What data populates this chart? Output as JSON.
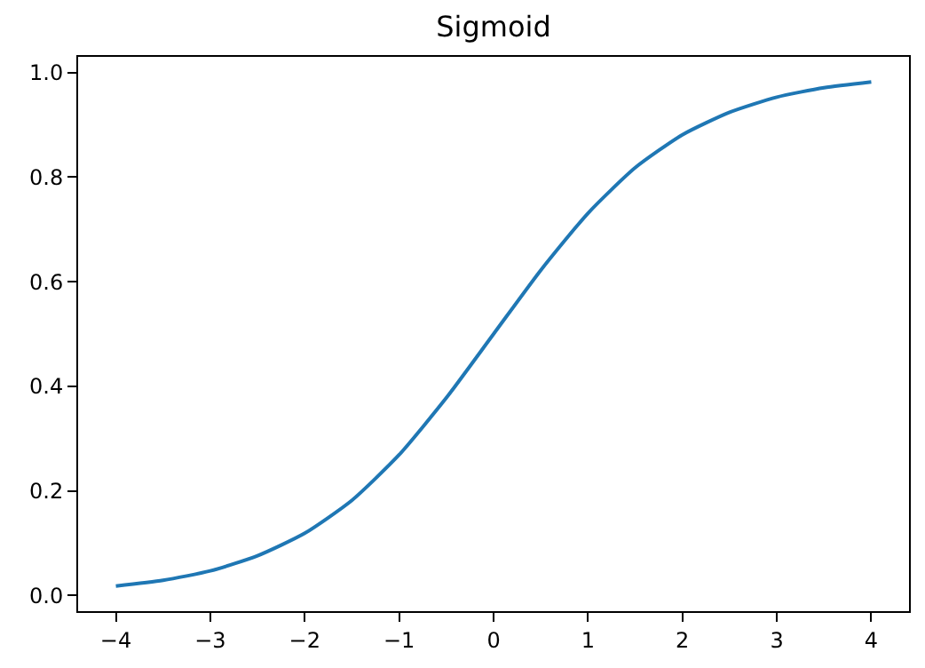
{
  "chart_data": {
    "type": "line",
    "title": "Sigmoid",
    "x": [
      -4,
      -3.5,
      -3,
      -2.5,
      -2,
      -1.5,
      -1,
      -0.5,
      0,
      0.5,
      1,
      1.5,
      2,
      2.5,
      3,
      3.5,
      4
    ],
    "series": [
      {
        "color": "#1f77b4",
        "values": [
          0.018,
          0.029,
          0.047,
          0.076,
          0.119,
          0.182,
          0.269,
          0.378,
          0.5,
          0.622,
          0.731,
          0.818,
          0.881,
          0.924,
          0.953,
          0.971,
          0.982
        ]
      }
    ],
    "xlim": [
      -4.4,
      4.4
    ],
    "ylim": [
      -0.03,
      1.03
    ],
    "xticks": [
      {
        "value": -4,
        "label": "−4"
      },
      {
        "value": -3,
        "label": "−3"
      },
      {
        "value": -2,
        "label": "−2"
      },
      {
        "value": -1,
        "label": "−1"
      },
      0,
      1,
      2,
      3,
      4
    ],
    "yticks": [
      {
        "value": 0,
        "label": "0.0"
      },
      {
        "value": 0.2,
        "label": "0.2"
      },
      {
        "value": 0.4,
        "label": "0.4"
      },
      {
        "value": 0.6,
        "label": "0.6"
      },
      {
        "value": 0.8,
        "label": "0.8"
      },
      {
        "value": 1,
        "label": "1.0"
      }
    ],
    "grid": false,
    "marker": "none",
    "line_style": "solid"
  }
}
